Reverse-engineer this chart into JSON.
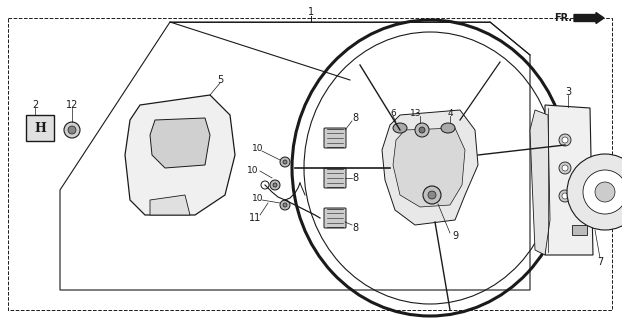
{
  "bg_color": "#ffffff",
  "line_color": "#1a1a1a",
  "fig_width": 6.22,
  "fig_height": 3.2,
  "dpi": 100
}
